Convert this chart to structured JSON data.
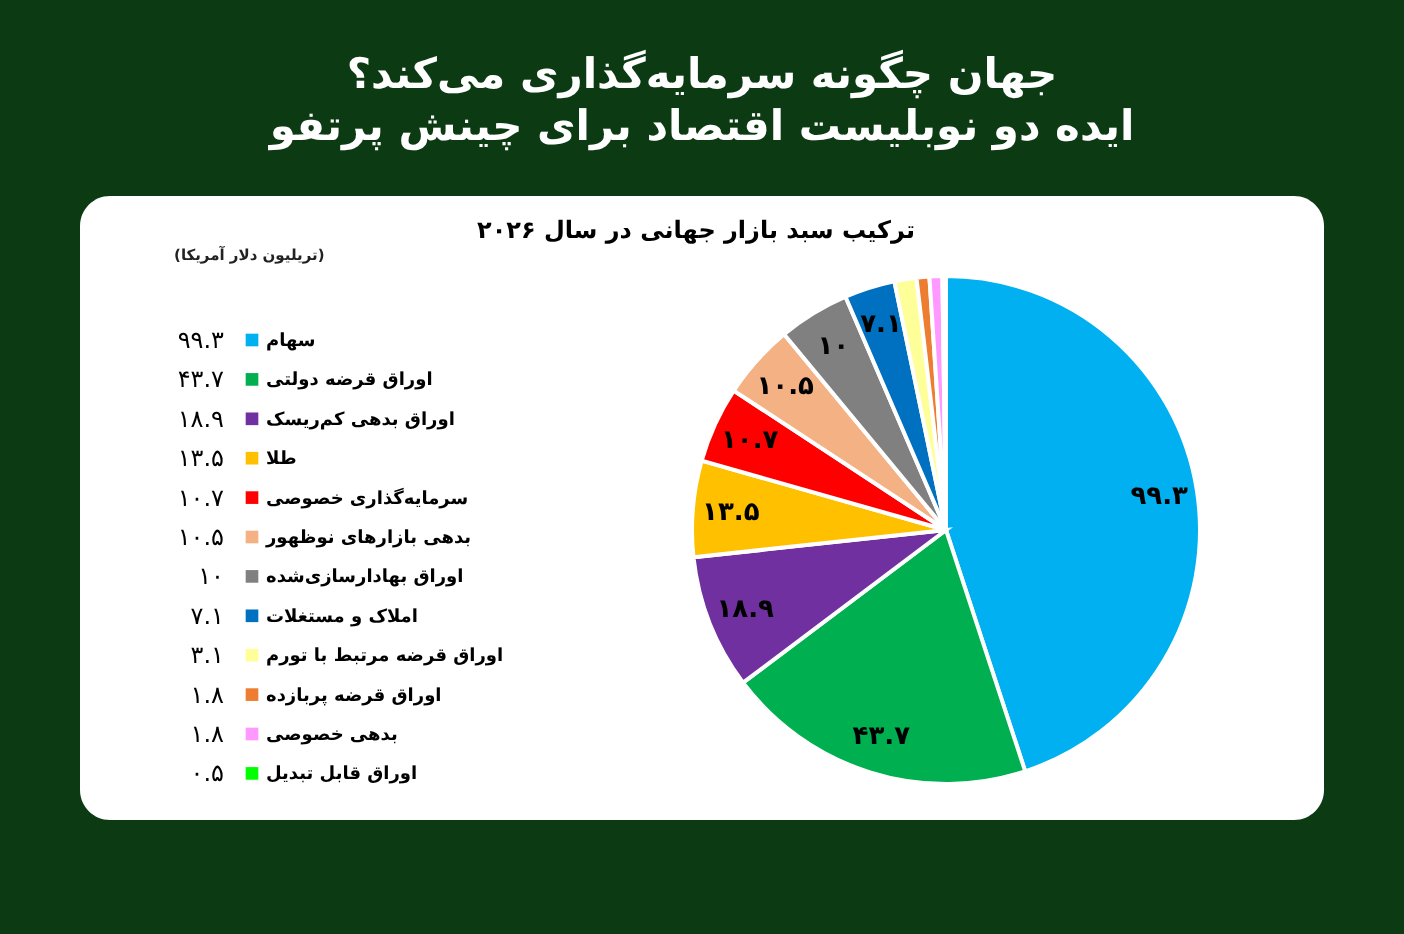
{
  "chart_data": {
    "type": "pie",
    "title": "جهان چگونه سرمایه‌گذاری می‌کند؟",
    "subtitle": "ایده دو نوبلیست اقتصاد برای چینش پرتفو",
    "annotations": [
      "ترکیب سبد بازار جهانی در سال ۲۰۲۶"
    ],
    "legend_title": "(تریلیون دلار آمریکا)",
    "legend": "left",
    "categories": [
      "سهام",
      "اوراق قرضه دولتی",
      "اوراق بدهی کم‌ریسک",
      "طلا",
      "سرمایه‌گذاری خصوصی",
      "بدهی بازارهای نوظهور",
      "اوراق بهادارسازی‌شده",
      "املاک و مستغلات",
      "اوراق قرضه مرتبط با تورم",
      "اوراق قرضه پربازده",
      "بدهی خصوصی",
      "اوراق قابل تبدیل"
    ],
    "values": [
      99.3,
      43.7,
      18.9,
      13.5,
      10.7,
      10.5,
      10,
      7.1,
      3.1,
      1.8,
      1.8,
      0.5
    ],
    "colors": [
      "#00b0f0",
      "#00b050",
      "#7030a0",
      "#ffc000",
      "#ff0000",
      "#f4b183",
      "#808080",
      "#0070c0",
      "#ffff99",
      "#ed7d31",
      "#ff99ff",
      "#00ff00"
    ],
    "value_labels": [
      "۹۹.۳",
      "۴۳.۷",
      "۱۸.۹",
      "۱۳.۵",
      "۱۰.۷",
      "۱۰.۵",
      "۱۰",
      "۷.۱",
      "۳.۱",
      "۱.۸",
      "۱.۸",
      "۰.۵"
    ]
  }
}
